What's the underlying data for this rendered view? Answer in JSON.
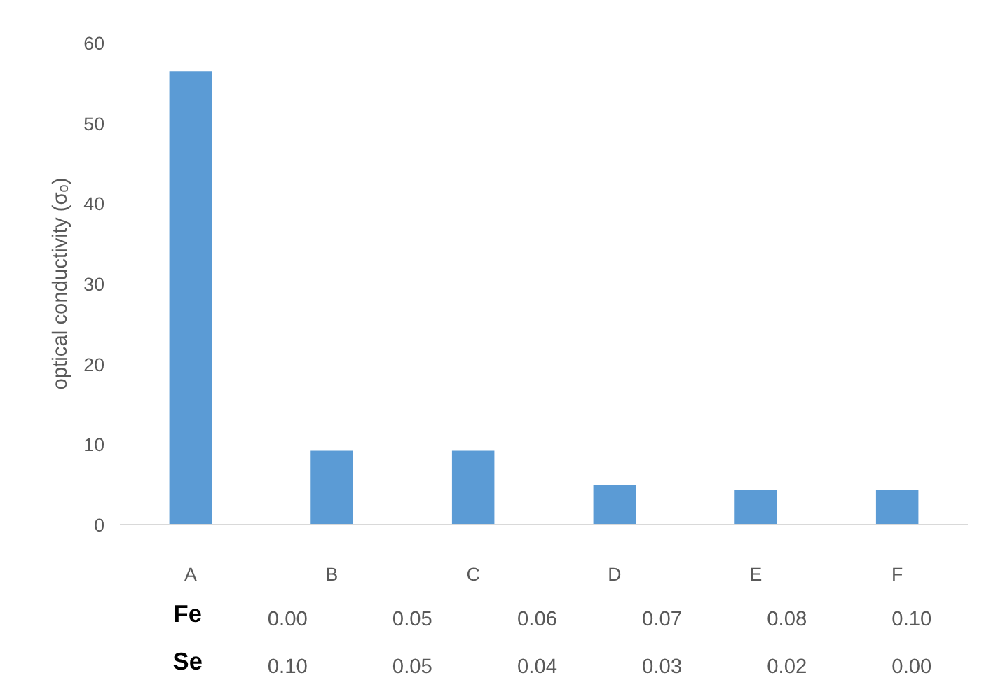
{
  "chart_data": {
    "type": "bar",
    "ylabel": "optical conductivity (σₒ)",
    "categories": [
      "A",
      "B",
      "C",
      "D",
      "E",
      "F"
    ],
    "values": [
      56.4,
      9.2,
      9.2,
      4.9,
      4.3,
      4.3
    ],
    "color": "#5b9bd5",
    "ylim": [
      0,
      60
    ],
    "yticks": [
      0,
      10,
      20,
      30,
      40,
      50,
      60
    ],
    "grid": false,
    "annotations": [
      "Fe",
      "0.00",
      "0.05",
      "0.06",
      "0.07",
      "0.08",
      "0.10",
      "Se",
      "0.10",
      "0.05",
      "0.04",
      "0.03",
      "0.02",
      "0.00"
    ]
  }
}
